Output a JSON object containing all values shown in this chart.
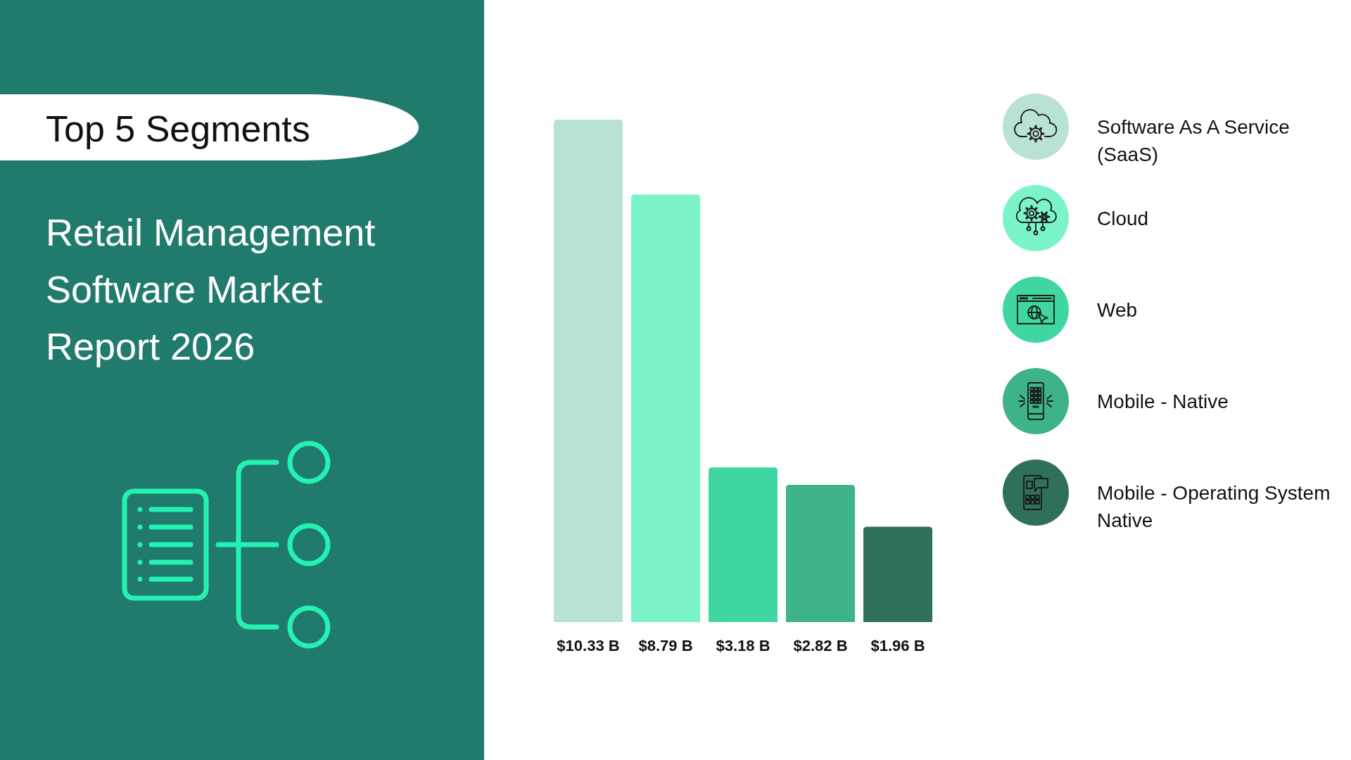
{
  "chart_data": {
    "type": "bar",
    "title": "Top 5 Segments",
    "subtitle": "Retail Management Software Market Report 2026",
    "categories": [
      null
    ],
    "series": [
      {
        "name": "Software As A Service (SaaS)",
        "color": "#b8e2d3",
        "values": [
          10.33
        ],
        "value_labels": [
          "$10.33 B"
        ]
      },
      {
        "name": "Cloud",
        "color": "#7bf4c8",
        "values": [
          8.79
        ],
        "value_labels": [
          "$8.79 B"
        ]
      },
      {
        "name": "Web",
        "color": "#3fd79f",
        "values": [
          3.18
        ],
        "value_labels": [
          "$3.18 B"
        ]
      },
      {
        "name": "Mobile - Native",
        "color": "#3db387",
        "values": [
          2.82
        ],
        "value_labels": [
          "$2.82 B"
        ]
      },
      {
        "name": "Mobile - Operating System Native",
        "color": "#2e7059",
        "values": [
          1.96
        ],
        "value_labels": [
          "$1.96 B"
        ]
      }
    ],
    "tick_labels": false,
    "legend": "right"
  }
}
